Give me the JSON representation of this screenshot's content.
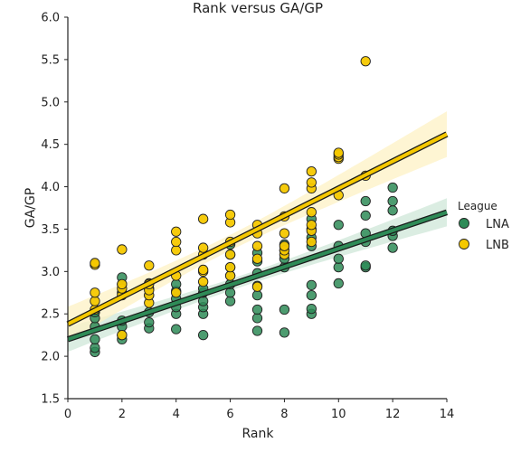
{
  "chart_data": {
    "type": "scatter",
    "title": "Rank versus GA/GP",
    "xlabel": "Rank",
    "ylabel": "GA/GP",
    "xlim": [
      0,
      14
    ],
    "ylim": [
      1.5,
      6.0
    ],
    "xticks": [
      "0",
      "2",
      "4",
      "6",
      "8",
      "10",
      "12",
      "14"
    ],
    "yticks": [
      "1.5",
      "2.0",
      "2.5",
      "3.0",
      "3.5",
      "4.0",
      "4.5",
      "5.0",
      "5.5",
      "6.0"
    ],
    "grid": false,
    "legend": {
      "title": "League",
      "placement": "right"
    },
    "series": [
      {
        "name": "LNA",
        "color": "#2e8b57",
        "regression": {
          "intercept": 2.2,
          "slope": 0.107
        },
        "band_color": "#cfe7d8",
        "points": [
          [
            1,
            2.05
          ],
          [
            1,
            2.1
          ],
          [
            1,
            2.2
          ],
          [
            1,
            2.35
          ],
          [
            1,
            2.45
          ],
          [
            1,
            2.52
          ],
          [
            2,
            2.2
          ],
          [
            2,
            2.25
          ],
          [
            2,
            2.35
          ],
          [
            2,
            2.42
          ],
          [
            2,
            2.75
          ],
          [
            2,
            2.85
          ],
          [
            2,
            2.93
          ],
          [
            3,
            2.33
          ],
          [
            3,
            2.4
          ],
          [
            3,
            2.52
          ],
          [
            3,
            2.72
          ],
          [
            3,
            2.8
          ],
          [
            3,
            2.86
          ],
          [
            4,
            2.32
          ],
          [
            4,
            2.5
          ],
          [
            4,
            2.58
          ],
          [
            4,
            2.68
          ],
          [
            4,
            2.77
          ],
          [
            4,
            2.85
          ],
          [
            5,
            2.25
          ],
          [
            5,
            2.5
          ],
          [
            5,
            2.58
          ],
          [
            5,
            2.65
          ],
          [
            5,
            2.75
          ],
          [
            5,
            2.8
          ],
          [
            6,
            2.65
          ],
          [
            6,
            2.75
          ],
          [
            6,
            2.85
          ],
          [
            6,
            2.95
          ],
          [
            6,
            3.05
          ],
          [
            6,
            3.2
          ],
          [
            6,
            3.32
          ],
          [
            7,
            2.3
          ],
          [
            7,
            2.45
          ],
          [
            7,
            2.55
          ],
          [
            7,
            2.72
          ],
          [
            7,
            2.83
          ],
          [
            7,
            2.98
          ],
          [
            7,
            3.12
          ],
          [
            7,
            3.22
          ],
          [
            8,
            2.28
          ],
          [
            8,
            2.55
          ],
          [
            8,
            3.05
          ],
          [
            8,
            3.15
          ],
          [
            8,
            3.25
          ],
          [
            8,
            3.32
          ],
          [
            9,
            2.5
          ],
          [
            9,
            2.56
          ],
          [
            9,
            2.72
          ],
          [
            9,
            2.84
          ],
          [
            9,
            3.3
          ],
          [
            9,
            3.4
          ],
          [
            9,
            3.5
          ],
          [
            9,
            3.62
          ],
          [
            10,
            2.86
          ],
          [
            10,
            3.05
          ],
          [
            10,
            3.15
          ],
          [
            10,
            3.3
          ],
          [
            10,
            3.55
          ],
          [
            11,
            3.05
          ],
          [
            11,
            3.07
          ],
          [
            11,
            3.35
          ],
          [
            11,
            3.45
          ],
          [
            11,
            3.66
          ],
          [
            11,
            3.83
          ],
          [
            12,
            3.28
          ],
          [
            12,
            3.42
          ],
          [
            12,
            3.48
          ],
          [
            12,
            3.72
          ],
          [
            12,
            3.83
          ],
          [
            12,
            3.99
          ]
        ]
      },
      {
        "name": "LNB",
        "color": "#f5c800",
        "regression": {
          "intercept": 2.38,
          "slope": 0.16
        },
        "band_color": "#fdf2c4",
        "points": [
          [
            1,
            2.55
          ],
          [
            1,
            2.65
          ],
          [
            1,
            2.75
          ],
          [
            1,
            3.08
          ],
          [
            1,
            3.1
          ],
          [
            2,
            2.25
          ],
          [
            2,
            2.72
          ],
          [
            2,
            2.8
          ],
          [
            2,
            2.85
          ],
          [
            2,
            3.26
          ],
          [
            3,
            2.63
          ],
          [
            3,
            2.72
          ],
          [
            3,
            2.78
          ],
          [
            3,
            2.85
          ],
          [
            3,
            3.07
          ],
          [
            4,
            2.75
          ],
          [
            4,
            2.95
          ],
          [
            4,
            3.25
          ],
          [
            4,
            3.35
          ],
          [
            4,
            3.47
          ],
          [
            5,
            2.88
          ],
          [
            5,
            3.0
          ],
          [
            5,
            3.02
          ],
          [
            5,
            3.2
          ],
          [
            5,
            3.28
          ],
          [
            5,
            3.62
          ],
          [
            6,
            2.95
          ],
          [
            6,
            3.05
          ],
          [
            6,
            3.2
          ],
          [
            6,
            3.35
          ],
          [
            6,
            3.58
          ],
          [
            6,
            3.67
          ],
          [
            7,
            2.82
          ],
          [
            7,
            3.15
          ],
          [
            7,
            3.3
          ],
          [
            7,
            3.45
          ],
          [
            7,
            3.55
          ],
          [
            8,
            3.2
          ],
          [
            8,
            3.25
          ],
          [
            8,
            3.3
          ],
          [
            8,
            3.45
          ],
          [
            8,
            3.65
          ],
          [
            8,
            3.98
          ],
          [
            9,
            3.35
          ],
          [
            9,
            3.48
          ],
          [
            9,
            3.55
          ],
          [
            9,
            3.7
          ],
          [
            9,
            3.98
          ],
          [
            9,
            4.05
          ],
          [
            9,
            4.18
          ],
          [
            10,
            3.9
          ],
          [
            10,
            4.33
          ],
          [
            10,
            4.35
          ],
          [
            10,
            4.38
          ],
          [
            10,
            4.4
          ],
          [
            11,
            4.13
          ],
          [
            11,
            5.48
          ]
        ]
      }
    ]
  }
}
